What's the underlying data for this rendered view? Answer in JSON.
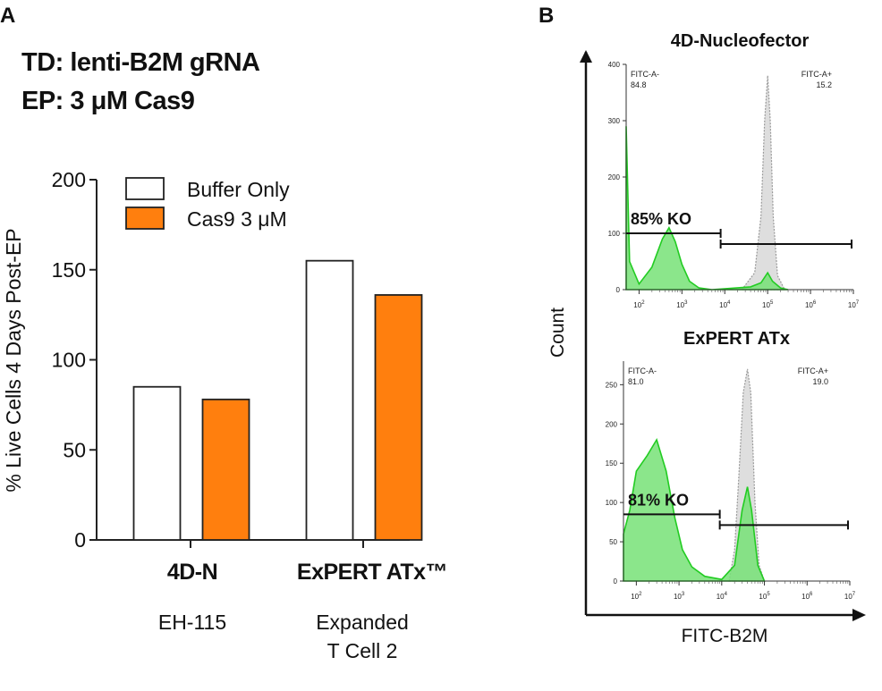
{
  "panel_a": {
    "letter": "A",
    "condition_line1": "TD: lenti-B2M gRNA",
    "condition_line2": "EP: 3 μM Cas9"
  },
  "panel_b": {
    "letter": "B",
    "y_axis_label": "Count",
    "x_axis_label": "FITC-B2M"
  },
  "colors": {
    "buffer_fill": "#ffffff",
    "cas9_fill": "#ff7f0e",
    "green_fill": "#77e277",
    "green_line": "#22cc22",
    "gray_fill": "#d0d0d0"
  },
  "chart_data": [
    {
      "type": "bar",
      "ylabel": "% Live Cells 4 Days Post-EP",
      "ylim": [
        0,
        200
      ],
      "yticks": [
        0,
        50,
        100,
        150,
        200
      ],
      "legend_position": "top-left",
      "categories": [
        {
          "name": "4D-N",
          "sub": "EH-115"
        },
        {
          "name": "ExPERT ATx™",
          "sub": [
            "Expanded",
            "T Cell 2"
          ]
        }
      ],
      "series": [
        {
          "name": "Buffer Only",
          "values": [
            85,
            155
          ]
        },
        {
          "name": "Cas9 3 μM",
          "values": [
            78,
            136
          ]
        }
      ]
    },
    {
      "type": "area",
      "title": "4D-Nucleofector",
      "x_scale": "log",
      "xlim": [
        50,
        10000000
      ],
      "ylim": [
        0,
        400
      ],
      "yticks": [
        "0",
        "100",
        "200",
        "300",
        "400"
      ],
      "xticks": [
        "10^2",
        "10^3",
        "10^4",
        "10^5",
        "10^6",
        "10^7"
      ],
      "gate_left": {
        "label": "FITC-A-",
        "value": "84.8"
      },
      "gate_right": {
        "label": "FITC-A+",
        "value": "15.2"
      },
      "annotation": "85% KO",
      "gate_y": 100,
      "gate_boundary_x": 8000,
      "series": [
        {
          "color": "gray",
          "points": [
            [
              25000,
              0
            ],
            [
              50000,
              30
            ],
            [
              70000,
              130
            ],
            [
              85000,
              300
            ],
            [
              100000,
              380
            ],
            [
              115000,
              300
            ],
            [
              135000,
              130
            ],
            [
              170000,
              25
            ],
            [
              250000,
              0
            ]
          ]
        },
        {
          "color": "green",
          "points": [
            [
              50,
              290
            ],
            [
              60,
              50
            ],
            [
              100,
              10
            ],
            [
              200,
              40
            ],
            [
              350,
              90
            ],
            [
              500,
              110
            ],
            [
              700,
              85
            ],
            [
              1000,
              45
            ],
            [
              1500,
              15
            ],
            [
              2500,
              3
            ],
            [
              5000,
              0
            ],
            [
              40000,
              5
            ],
            [
              70000,
              12
            ],
            [
              100000,
              30
            ],
            [
              130000,
              15
            ],
            [
              200000,
              3
            ],
            [
              300000,
              0
            ]
          ]
        }
      ]
    },
    {
      "type": "area",
      "title": "ExPERT ATx",
      "x_scale": "log",
      "xlim": [
        50,
        10000000
      ],
      "ylim": [
        0,
        280
      ],
      "yticks": [
        "0",
        "50",
        "100",
        "150",
        "200",
        "250"
      ],
      "xticks": [
        "10^2",
        "10^3",
        "10^4",
        "10^5",
        "10^6",
        "10^7"
      ],
      "gate_left": {
        "label": "FITC-A-",
        "value": "81.0"
      },
      "gate_right": {
        "label": "FITC-A+",
        "value": "19.0"
      },
      "annotation": "81% KO",
      "gate_y": 85,
      "gate_boundary_x": 9000,
      "series": [
        {
          "color": "gray",
          "points": [
            [
              15000,
              0
            ],
            [
              20000,
              40
            ],
            [
              25000,
              130
            ],
            [
              32000,
              240
            ],
            [
              40000,
              270
            ],
            [
              48000,
              240
            ],
            [
              60000,
              100
            ],
            [
              75000,
              20
            ],
            [
              100000,
              0
            ]
          ]
        },
        {
          "color": "green",
          "points": [
            [
              50,
              60
            ],
            [
              70,
              90
            ],
            [
              100,
              140
            ],
            [
              180,
              160
            ],
            [
              300,
              180
            ],
            [
              500,
              140
            ],
            [
              800,
              80
            ],
            [
              1200,
              40
            ],
            [
              2000,
              18
            ],
            [
              4000,
              6
            ],
            [
              10000,
              2
            ],
            [
              20000,
              20
            ],
            [
              30000,
              90
            ],
            [
              40000,
              120
            ],
            [
              50000,
              90
            ],
            [
              70000,
              20
            ],
            [
              100000,
              0
            ]
          ]
        }
      ]
    }
  ]
}
